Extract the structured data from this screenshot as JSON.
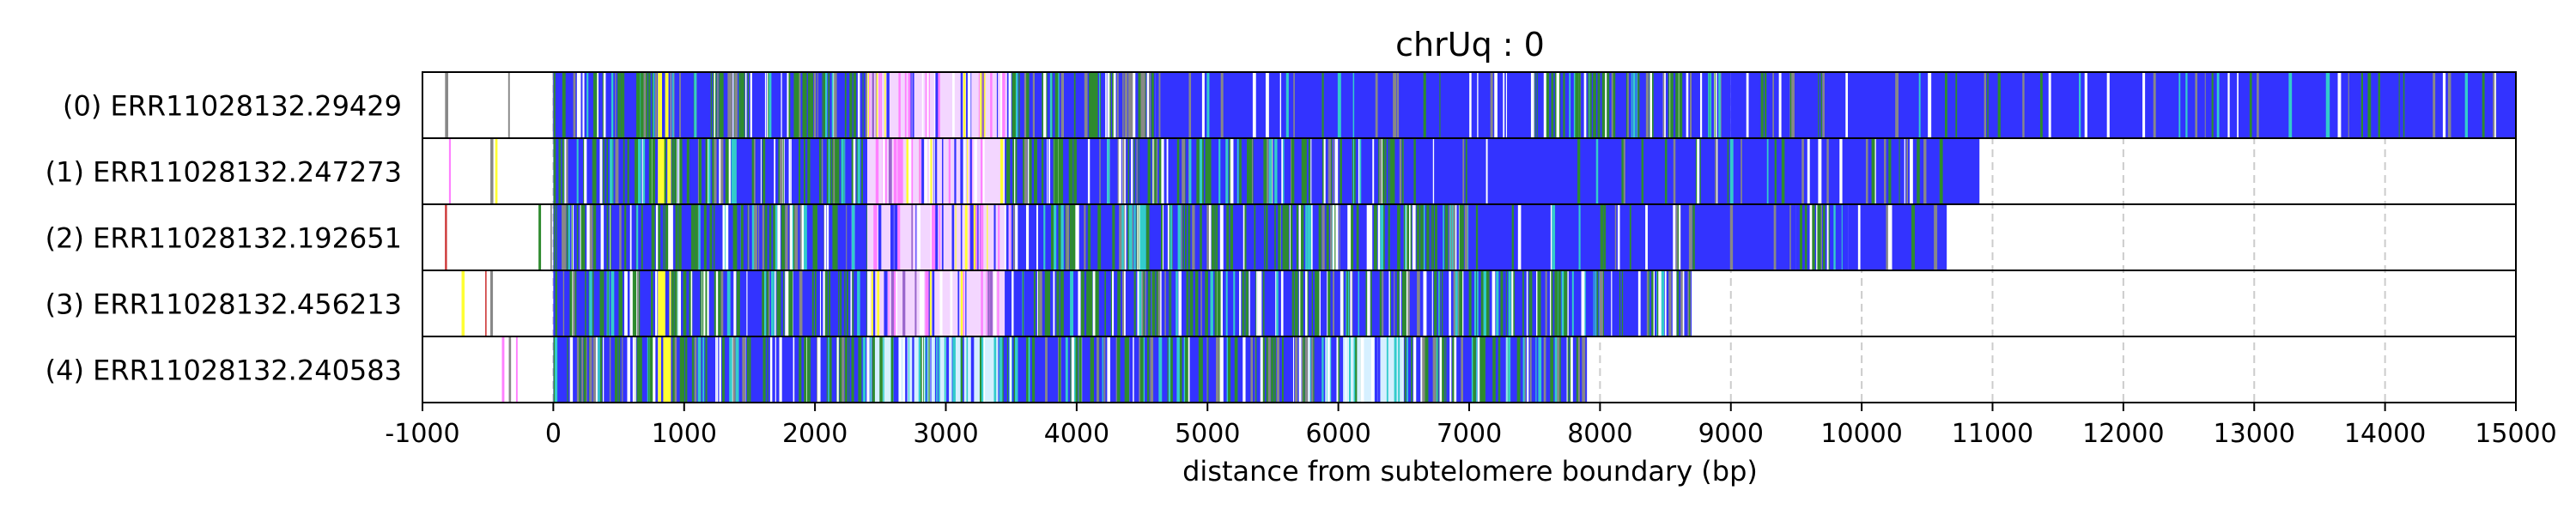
{
  "chart_data": {
    "type": "heatmap",
    "title": "chrUq : 0",
    "xlabel": "distance from subtelomere boundary (bp)",
    "xlim": [
      -1000,
      15000
    ],
    "xticks": [
      -1000,
      0,
      1000,
      2000,
      3000,
      4000,
      5000,
      6000,
      7000,
      8000,
      9000,
      10000,
      11000,
      12000,
      13000,
      14000,
      15000
    ],
    "xtick_labels": [
      "-1000",
      "0",
      "1000",
      "2000",
      "3000",
      "4000",
      "5000",
      "6000",
      "7000",
      "8000",
      "9000",
      "10000",
      "11000",
      "12000",
      "13000",
      "14000",
      "15000"
    ],
    "grid": "vertical dashed lines at x ticks",
    "colors": {
      "blue": "#3333ff",
      "green": "#2e8b2e",
      "pink": "#ff80ff",
      "yellow": "#ffff33",
      "cyan": "#33cccc",
      "grey": "#888888",
      "red": "#cc3333",
      "purple": "#9966cc",
      "gridline": "#cccccc"
    },
    "reads": [
      {
        "label": "(0) ERR11028132.29429",
        "start": -1000,
        "end": 15000,
        "bands": [
          {
            "start": -1000,
            "end": 0,
            "pattern": "sparse"
          },
          {
            "start": 0,
            "end": 800,
            "pattern": "blue_green"
          },
          {
            "start": 800,
            "end": 900,
            "pattern": "yellow"
          },
          {
            "start": 900,
            "end": 2400,
            "pattern": "blue_green"
          },
          {
            "start": 2400,
            "end": 3500,
            "pattern": "pink"
          },
          {
            "start": 3500,
            "end": 4300,
            "pattern": "blue_green"
          },
          {
            "start": 4300,
            "end": 4600,
            "pattern": "grey_mix"
          },
          {
            "start": 4600,
            "end": 7500,
            "pattern": "blue_sparse"
          },
          {
            "start": 7500,
            "end": 9000,
            "pattern": "blue_green"
          },
          {
            "start": 9000,
            "end": 15000,
            "pattern": "blue_sparse"
          }
        ]
      },
      {
        "label": "(1) ERR11028132.247273",
        "start": -1000,
        "end": 10900,
        "bands": [
          {
            "start": -1000,
            "end": 0,
            "pattern": "sparse"
          },
          {
            "start": 0,
            "end": 800,
            "pattern": "blue_green"
          },
          {
            "start": 800,
            "end": 900,
            "pattern": "yellow"
          },
          {
            "start": 900,
            "end": 2400,
            "pattern": "blue_green"
          },
          {
            "start": 2400,
            "end": 3450,
            "pattern": "pink"
          },
          {
            "start": 3450,
            "end": 6500,
            "pattern": "blue_green"
          },
          {
            "start": 6500,
            "end": 10900,
            "pattern": "blue_sparse"
          }
        ]
      },
      {
        "label": "(2) ERR11028132.192651",
        "start": -1000,
        "end": 10650,
        "bands": [
          {
            "start": -1000,
            "end": 0,
            "pattern": "sparse"
          },
          {
            "start": 0,
            "end": 2400,
            "pattern": "blue_green"
          },
          {
            "start": 2400,
            "end": 3500,
            "pattern": "pink"
          },
          {
            "start": 3500,
            "end": 7000,
            "pattern": "blue_green"
          },
          {
            "start": 7000,
            "end": 9500,
            "pattern": "blue_sparse"
          },
          {
            "start": 9500,
            "end": 9900,
            "pattern": "blue_green"
          },
          {
            "start": 9900,
            "end": 10650,
            "pattern": "blue_sparse"
          }
        ]
      },
      {
        "label": "(3) ERR11028132.456213",
        "start": -1000,
        "end": 8700,
        "bands": [
          {
            "start": -1000,
            "end": 0,
            "pattern": "sparse"
          },
          {
            "start": 0,
            "end": 800,
            "pattern": "blue_green"
          },
          {
            "start": 800,
            "end": 900,
            "pattern": "yellow"
          },
          {
            "start": 900,
            "end": 2400,
            "pattern": "blue_green"
          },
          {
            "start": 2400,
            "end": 3450,
            "pattern": "pink"
          },
          {
            "start": 3450,
            "end": 8700,
            "pattern": "blue_green"
          }
        ]
      },
      {
        "label": "(4) ERR11028132.240583",
        "start": -1000,
        "end": 7900,
        "bands": [
          {
            "start": -1000,
            "end": 0,
            "pattern": "sparse"
          },
          {
            "start": 0,
            "end": 800,
            "pattern": "blue_green"
          },
          {
            "start": 800,
            "end": 900,
            "pattern": "yellow"
          },
          {
            "start": 900,
            "end": 2400,
            "pattern": "blue_green"
          },
          {
            "start": 2400,
            "end": 3400,
            "pattern": "cyan_mix"
          },
          {
            "start": 3400,
            "end": 5900,
            "pattern": "blue_green"
          },
          {
            "start": 5900,
            "end": 6500,
            "pattern": "cyan_mix"
          },
          {
            "start": 6500,
            "end": 7900,
            "pattern": "blue_green"
          }
        ]
      }
    ]
  }
}
